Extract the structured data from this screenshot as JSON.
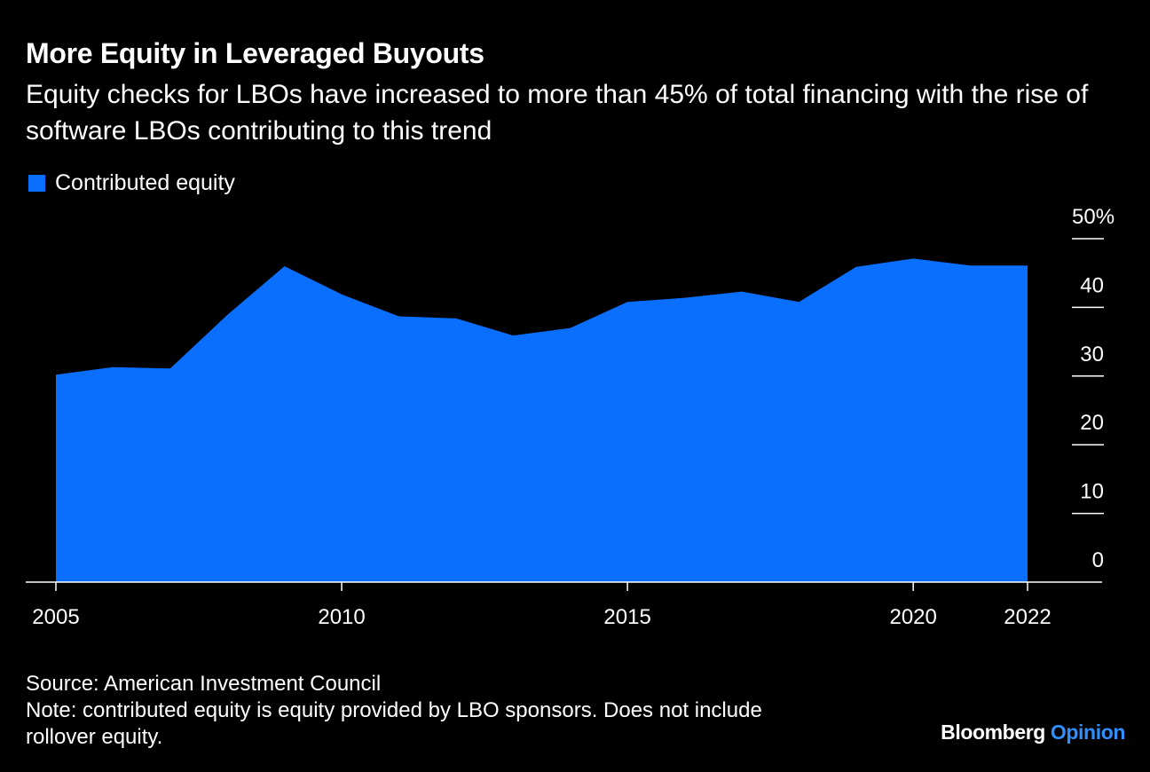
{
  "header": {
    "title": "More Equity in Leveraged Buyouts",
    "subtitle": "Equity checks for LBOs have increased to more than 45% of total financing with the rise of software LBOs contributing to this trend"
  },
  "legend": {
    "label": "Contributed equity",
    "color": "#0a6eff"
  },
  "footer": {
    "source": "Source: American Investment Council",
    "note_line1": "Note: contributed equity is equity provided by LBO sponsors. Does not include",
    "note_line2": "rollover equity.",
    "brand_main": "Bloomberg",
    "brand_accent": "Opinion",
    "brand_accent_color": "#2f8fff"
  },
  "chart_data": {
    "type": "area",
    "x": [
      2005,
      2006,
      2007,
      2008,
      2009,
      2010,
      2011,
      2012,
      2013,
      2014,
      2015,
      2016,
      2017,
      2018,
      2019,
      2020,
      2021,
      2022
    ],
    "series": [
      {
        "name": "Contributed equity",
        "values": [
          30.2,
          31.3,
          31.1,
          38.9,
          46.0,
          41.9,
          38.7,
          38.4,
          35.9,
          37.0,
          40.8,
          41.4,
          42.3,
          40.8,
          45.9,
          47.1,
          46.1,
          46.1
        ],
        "color": "#0a6eff"
      }
    ],
    "x_ticks": [
      "2005",
      "2010",
      "2015",
      "2020",
      "2022"
    ],
    "y_ticks": [
      "0",
      "10",
      "20",
      "30",
      "40",
      "50%"
    ],
    "ylim": [
      0,
      50
    ],
    "xlim": [
      2005,
      2022
    ],
    "y_axis_side": "right",
    "grid": false
  }
}
